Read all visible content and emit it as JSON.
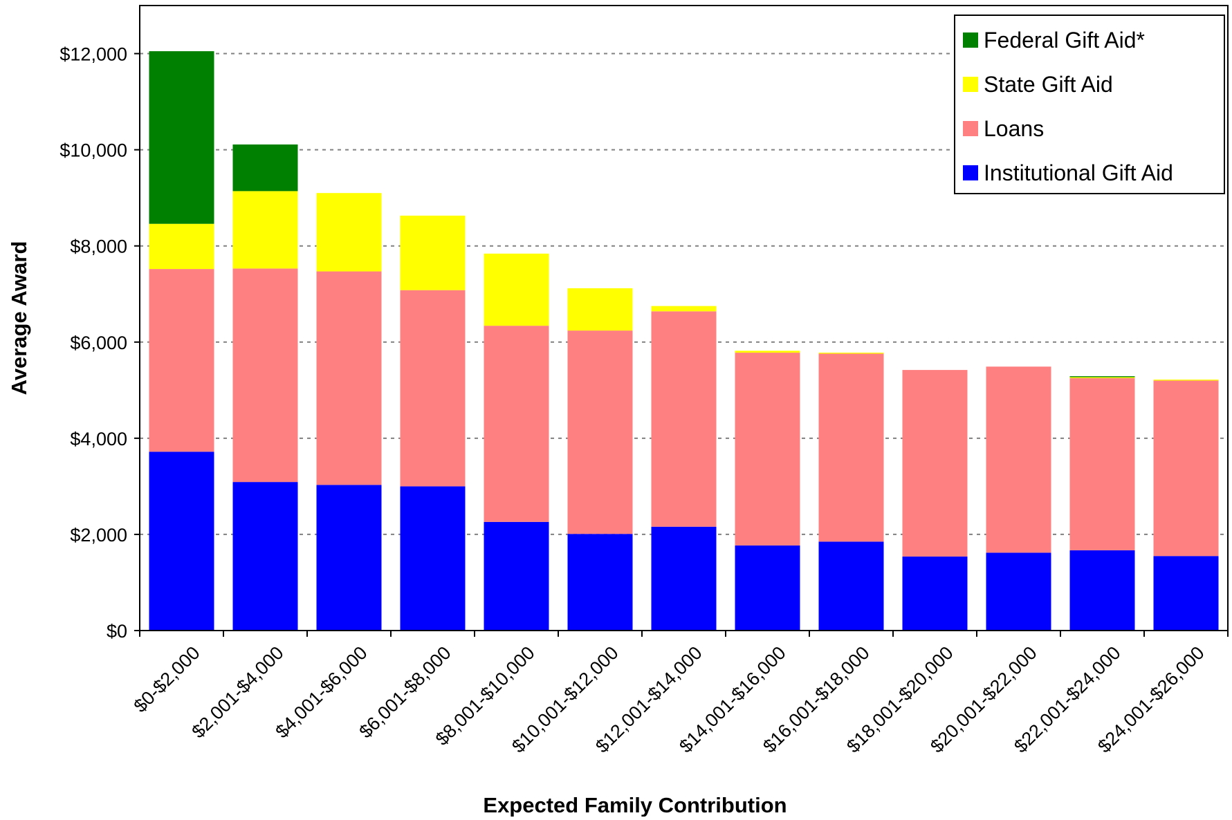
{
  "chart_data": {
    "type": "bar",
    "stacked": true,
    "title": "",
    "xlabel": "Expected Family Contribution",
    "ylabel": "Average Award",
    "ylim": [
      0,
      13000
    ],
    "yticks": [
      0,
      2000,
      4000,
      6000,
      8000,
      10000,
      12000
    ],
    "ytick_labels": [
      "$0",
      "$2,000",
      "$4,000",
      "$6,000",
      "$8,000",
      "$10,000",
      "$12,000"
    ],
    "grid": "horizontal dashed",
    "legend_position": "top-right",
    "categories": [
      "$0-$2,000",
      "$2,001-$4,000",
      "$4,001-$6,000",
      "$6,001-$8,000",
      "$8,001-$10,000",
      "$10,001-$12,000",
      "$12,001-$14,000",
      "$14,001-$16,000",
      "$16,001-$18,000",
      "$18,001-$20,000",
      "$20,001-$22,000",
      "$22,001-$24,000",
      "$24,001-$26,000"
    ],
    "series": [
      {
        "name": "Institutional Gift Aid",
        "color": "#0000FF",
        "values": [
          3720,
          3090,
          3030,
          3000,
          2260,
          2010,
          2160,
          1770,
          1850,
          1540,
          1620,
          1670,
          1550
        ]
      },
      {
        "name": "Loans",
        "color": "#FF8080",
        "values": [
          3800,
          4440,
          4440,
          4080,
          4080,
          4230,
          4480,
          4010,
          3910,
          3880,
          3870,
          3580,
          3650
        ]
      },
      {
        "name": "State Gift Aid",
        "color": "#FFFF00",
        "values": [
          940,
          1610,
          1630,
          1550,
          1500,
          880,
          110,
          40,
          20,
          0,
          0,
          20,
          20
        ]
      },
      {
        "name": "Federal Gift Aid*",
        "color": "#008000",
        "values": [
          3590,
          970,
          0,
          0,
          0,
          0,
          0,
          0,
          0,
          0,
          0,
          20,
          0
        ]
      }
    ],
    "legend_order": [
      "Federal Gift Aid*",
      "State Gift Aid",
      "Loans",
      "Institutional Gift Aid"
    ]
  }
}
